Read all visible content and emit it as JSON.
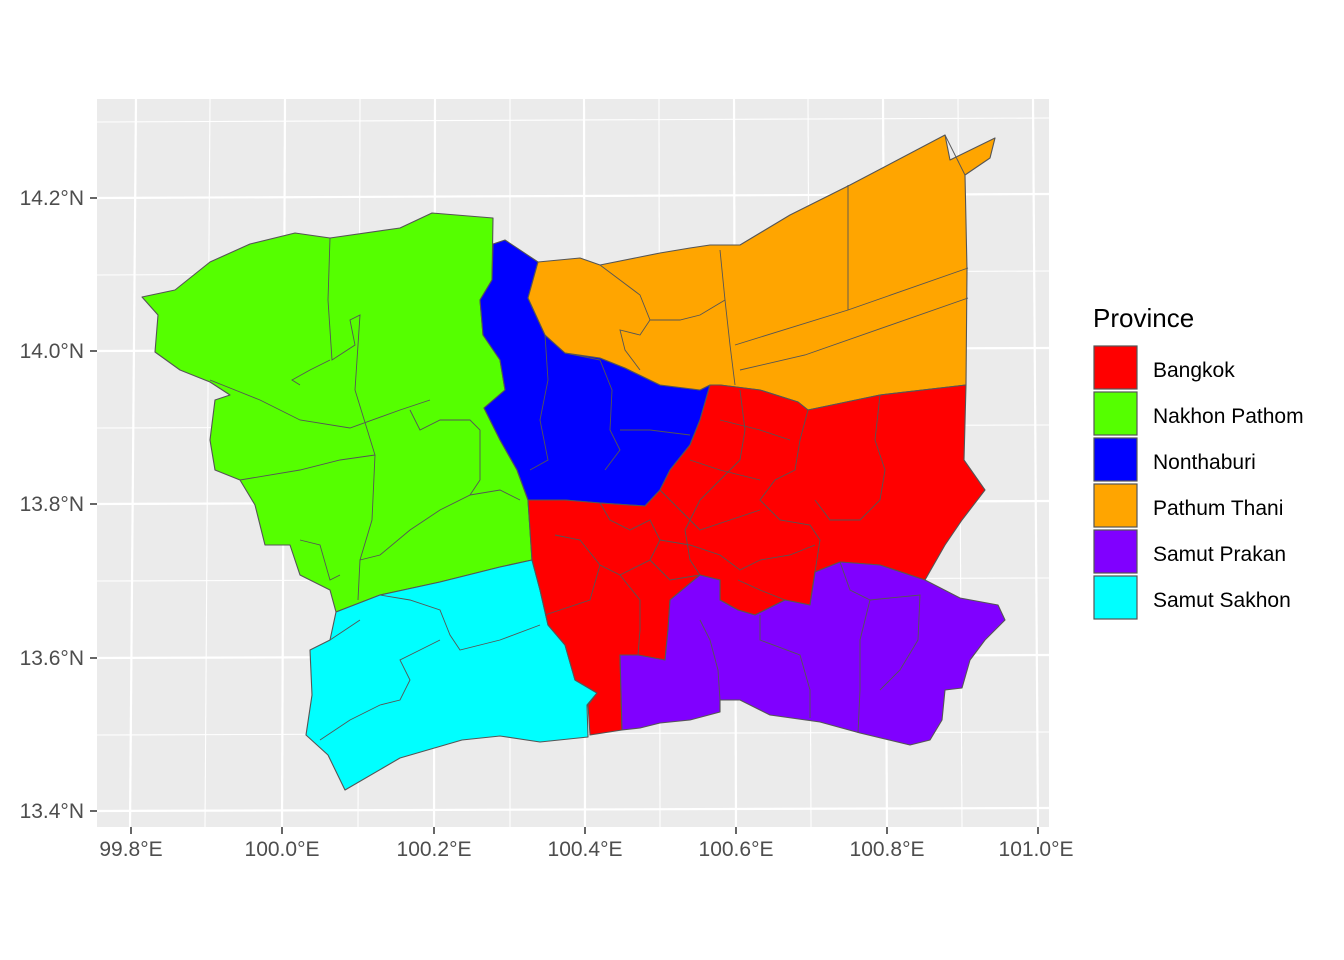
{
  "legend": {
    "title": "Province",
    "items": [
      {
        "label": "Bangkok",
        "color": "#FF0000"
      },
      {
        "label": "Nakhon Pathom",
        "color": "#55FF00"
      },
      {
        "label": "Nonthaburi",
        "color": "#0000FF"
      },
      {
        "label": "Pathum Thani",
        "color": "#FFA500"
      },
      {
        "label": "Samut Prakan",
        "color": "#8000FF"
      },
      {
        "label": "Samut Sakhon",
        "color": "#00FFFF"
      }
    ]
  },
  "axes": {
    "x_ticks": [
      "99.8°E",
      "100.0°E",
      "100.2°E",
      "100.4°E",
      "100.6°E",
      "100.8°E",
      "101.0°E"
    ],
    "y_ticks": [
      "14.2°N",
      "14.0°N",
      "13.8°N",
      "13.6°N",
      "13.4°N"
    ]
  },
  "style": {
    "panel_background": "#EBEBEB",
    "gridline_color": "#FFFFFF",
    "border_color": "#555555"
  }
}
